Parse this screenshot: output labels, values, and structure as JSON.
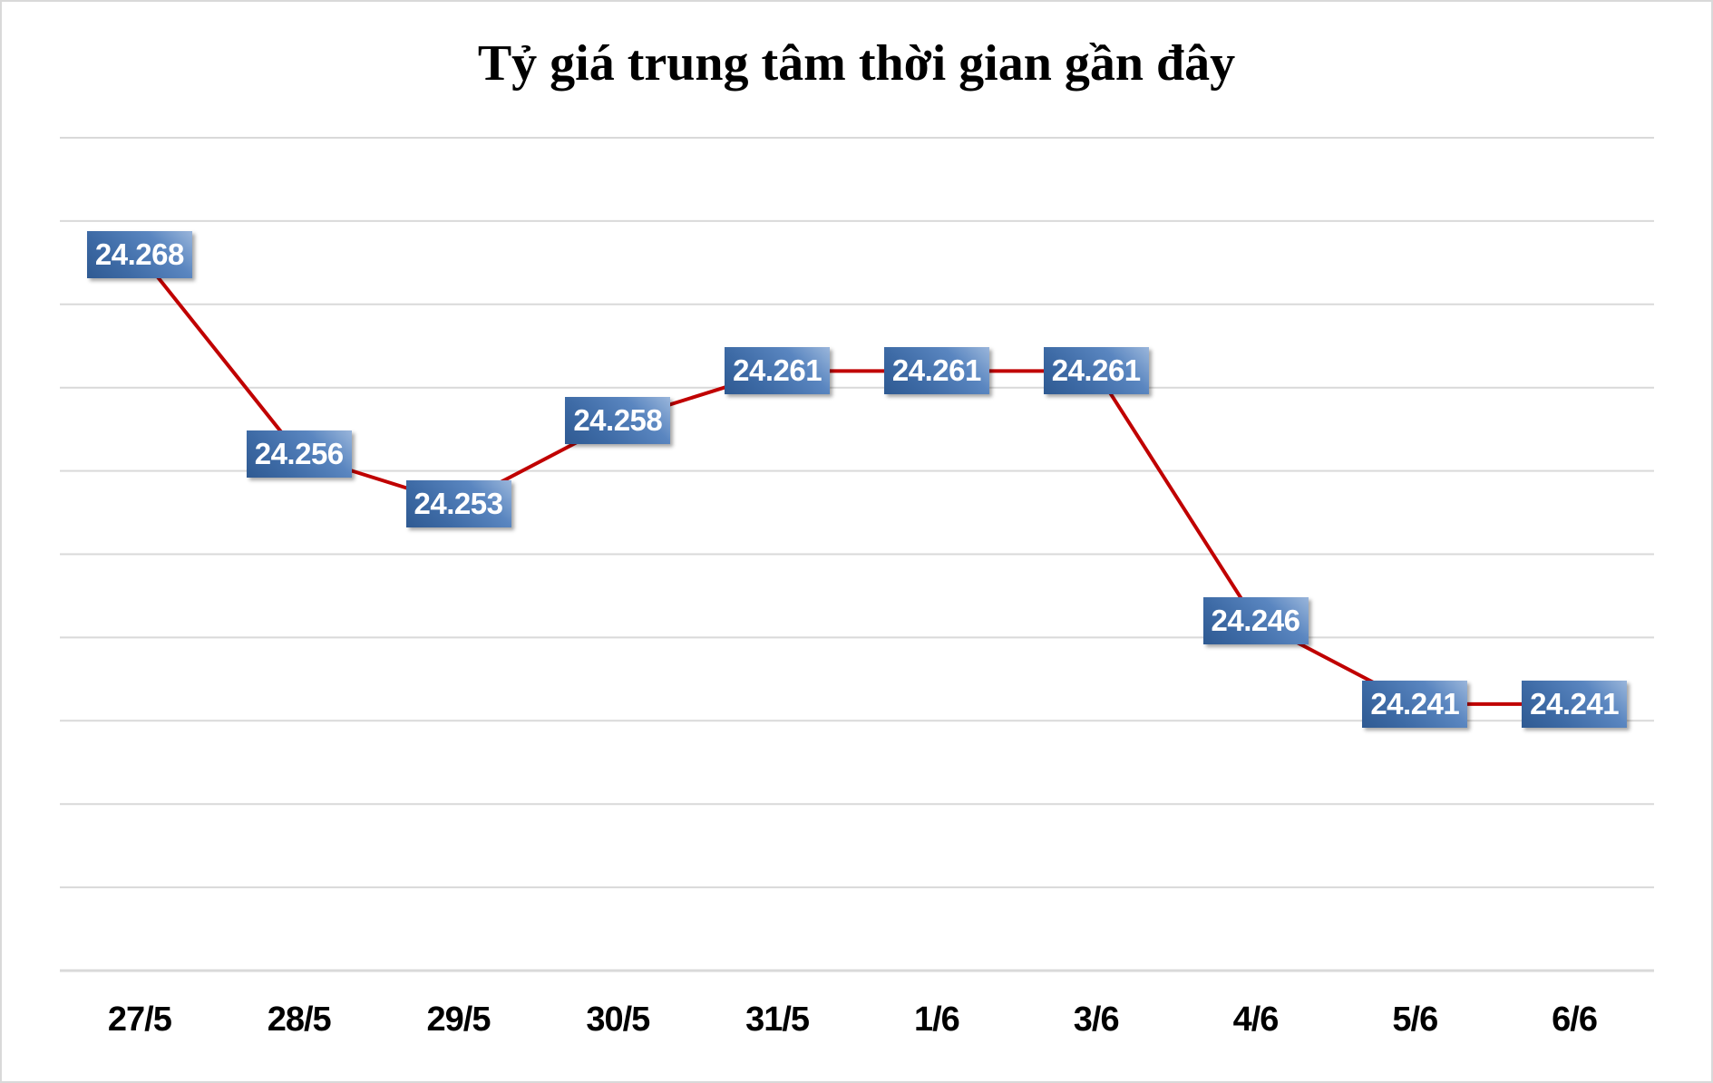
{
  "chart_data": {
    "type": "line",
    "title": "Tỷ giá trung tâm thời gian gần đây",
    "xlabel": "",
    "ylabel": "",
    "categories": [
      "27/5",
      "28/5",
      "29/5",
      "30/5",
      "31/5",
      "1/6",
      "3/6",
      "4/6",
      "5/6",
      "6/6"
    ],
    "series": [
      {
        "name": "Tỷ giá trung tâm",
        "values": [
          24.268,
          24.256,
          24.253,
          24.258,
          24.261,
          24.261,
          24.261,
          24.246,
          24.241,
          24.241
        ],
        "color": "#c00000"
      }
    ],
    "data_labels": [
      "24.268",
      "24.256",
      "24.253",
      "24.258",
      "24.261",
      "24.261",
      "24.261",
      "24.246",
      "24.241",
      "24.241"
    ],
    "ylim": [
      24.225,
      24.275
    ],
    "ytick_step": 0.005,
    "grid": true,
    "y_axis_labels_visible": false,
    "legend": "none"
  },
  "colors": {
    "line": "#c00000",
    "label_bg": "#4472c4",
    "grid": "#d9d9d9"
  }
}
